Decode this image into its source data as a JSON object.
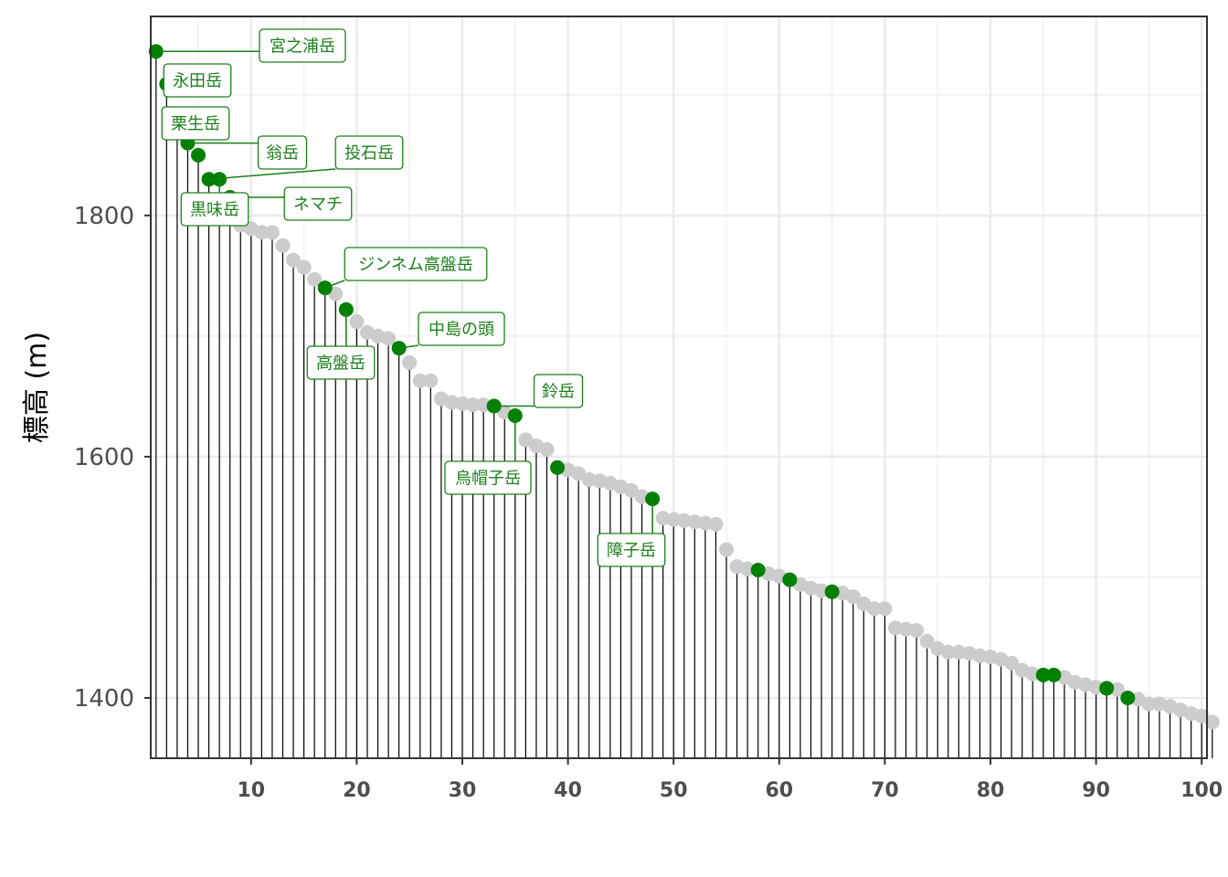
{
  "chart_data": {
    "type": "lollipop",
    "title": "",
    "xlabel": "",
    "ylabel": "標高 (m)",
    "xlim": [
      0.5,
      100.5
    ],
    "ylim": [
      1350,
      1965
    ],
    "x_ticks": [
      10,
      20,
      30,
      40,
      50,
      60,
      70,
      80,
      90,
      100
    ],
    "y_ticks": [
      1400,
      1600,
      1800
    ],
    "grid": true,
    "highlight_color": "#008000",
    "point_color": "#cccccc",
    "stem_color": "#000000",
    "values": [
      1936,
      1909,
      1882,
      1860,
      1850,
      1830,
      1830,
      1815,
      1792,
      1789,
      1786,
      1786,
      1775,
      1763,
      1757,
      1747,
      1740,
      1735,
      1722,
      1712,
      1703,
      1700,
      1698,
      1690,
      1678,
      1663,
      1663,
      1648,
      1645,
      1644,
      1643,
      1643,
      1642,
      1637,
      1634,
      1614,
      1609,
      1606,
      1591,
      1589,
      1586,
      1581,
      1580,
      1578,
      1575,
      1572,
      1567,
      1565,
      1549,
      1548,
      1547,
      1546,
      1545,
      1544,
      1523,
      1509,
      1507,
      1506,
      1503,
      1501,
      1498,
      1494,
      1491,
      1489,
      1488,
      1487,
      1484,
      1478,
      1474,
      1474,
      1458,
      1457,
      1456,
      1447,
      1441,
      1438,
      1438,
      1437,
      1435,
      1434,
      1432,
      1429,
      1423,
      1420,
      1419,
      1419,
      1417,
      1413,
      1411,
      1409,
      1408,
      1407,
      1400,
      1399,
      1395,
      1395,
      1393,
      1390,
      1387,
      1385,
      1380
    ],
    "highlights": [
      {
        "rank": 1,
        "name": "宮之浦岳"
      },
      {
        "rank": 2,
        "name": "永田岳"
      },
      {
        "rank": 3,
        "name": "栗生岳"
      },
      {
        "rank": 4,
        "name": "翁岳"
      },
      {
        "rank": 6,
        "name": "投石岳"
      },
      {
        "rank": 7,
        "name": "黒味岳"
      },
      {
        "rank": 8,
        "name": "ネマチ"
      },
      {
        "rank": 17,
        "name": "ジンネム高盤岳"
      },
      {
        "rank": 19,
        "name": "高盤岳"
      },
      {
        "rank": 24,
        "name": "中島の頭"
      },
      {
        "rank": 33,
        "name": "鈴岳"
      },
      {
        "rank": 35,
        "name": "烏帽子岳"
      },
      {
        "rank": 48,
        "name": "障子岳"
      },
      {
        "rank": 5,
        "name": ""
      },
      {
        "rank": 39,
        "name": ""
      },
      {
        "rank": 58,
        "name": ""
      },
      {
        "rank": 61,
        "name": ""
      },
      {
        "rank": 65,
        "name": ""
      },
      {
        "rank": 85,
        "name": ""
      },
      {
        "rank": 86,
        "name": ""
      },
      {
        "rank": 91,
        "name": ""
      },
      {
        "rank": 93,
        "name": ""
      }
    ]
  }
}
